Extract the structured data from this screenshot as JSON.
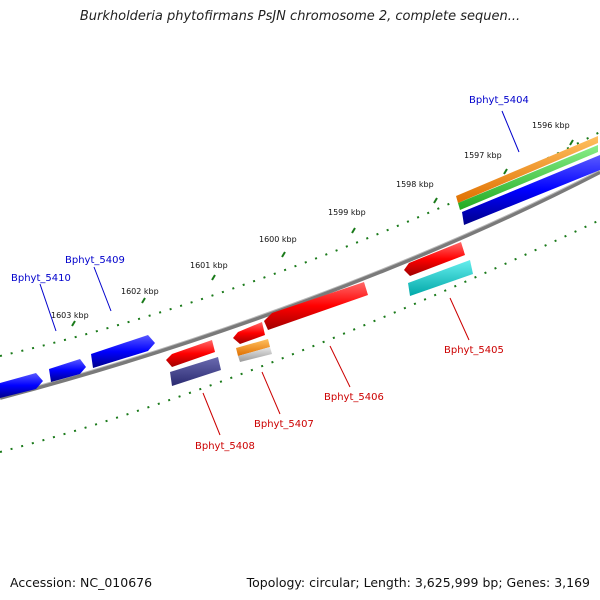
{
  "title": "Burkholderia phytofirmans PsJN chromosome 2, complete sequen...",
  "footer": {
    "accession": "Accession: NC_010676",
    "summary": "Topology: circular; Length: 3,625,999 bp; Genes: 3,169"
  },
  "ticks": [
    "1596 kbp",
    "1597 kbp",
    "1598 kbp",
    "1599 kbp",
    "1600 kbp",
    "1601 kbp",
    "1602 kbp",
    "1603 kbp"
  ],
  "genes": [
    {
      "label": "Bphyt_5404",
      "color": "#0000cc"
    },
    {
      "label": "Bphyt_5405",
      "color": "#cc0000"
    },
    {
      "label": "Bphyt_5406",
      "color": "#cc0000"
    },
    {
      "label": "Bphyt_5407",
      "color": "#cc0000"
    },
    {
      "label": "Bphyt_5408",
      "color": "#cc0000"
    },
    {
      "label": "Bphyt_5409",
      "color": "#0000cc"
    },
    {
      "label": "Bphyt_5410",
      "color": "#0000cc"
    }
  ],
  "colors": {
    "forward_strand": "#0000ff",
    "reverse_strand": "#ff0000",
    "backbone": "#808080",
    "tick": "#1a7a1a",
    "orange": "#ff8c00",
    "green": "#33cc33",
    "cyan": "#00cccc",
    "purple": "#3c3c8c"
  }
}
